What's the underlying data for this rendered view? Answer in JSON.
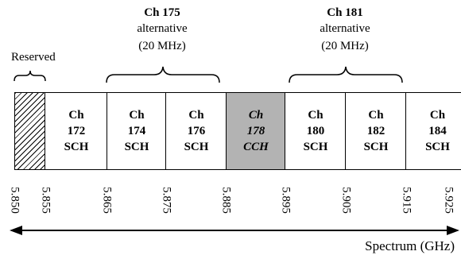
{
  "top_labels": {
    "ch175": {
      "title": "Ch 175",
      "sub1": "alternative",
      "sub2": "(20 MHz)"
    },
    "ch181": {
      "title": "Ch 181",
      "sub1": "alternative",
      "sub2": "(20 MHz)"
    }
  },
  "reserved_label": "Reserved",
  "channels": [
    {
      "line1": "Ch",
      "line2": "172",
      "line3": "SCH"
    },
    {
      "line1": "Ch",
      "line2": "174",
      "line3": "SCH"
    },
    {
      "line1": "Ch",
      "line2": "176",
      "line3": "SCH"
    },
    {
      "line1": "Ch",
      "line2": "178",
      "line3": "CCH"
    },
    {
      "line1": "Ch",
      "line2": "180",
      "line3": "SCH"
    },
    {
      "line1": "Ch",
      "line2": "182",
      "line3": "SCH"
    },
    {
      "line1": "Ch",
      "line2": "184",
      "line3": "SCH"
    }
  ],
  "frequencies": [
    "5.850",
    "5.855",
    "5.865",
    "5.875",
    "5.885",
    "5.895",
    "5.905",
    "5.915",
    "5.925"
  ],
  "axis_label": "Spectrum (GHz)",
  "colors": {
    "cch_fill": "#b3b3b3",
    "line": "#000000"
  }
}
